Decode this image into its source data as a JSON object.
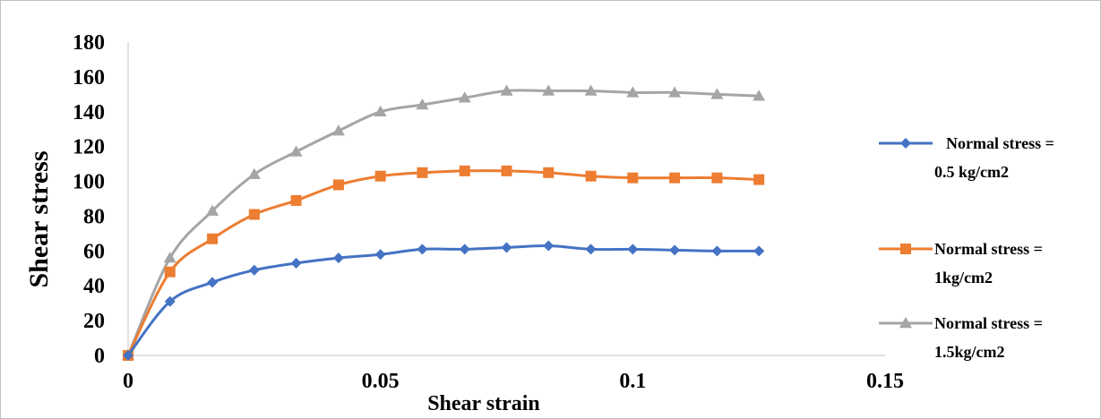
{
  "chart_data": {
    "type": "line",
    "title": "",
    "xlabel": "Shear strain",
    "ylabel": "Shear stress",
    "xlim": [
      0,
      0.15
    ],
    "ylim": [
      0,
      180
    ],
    "x_ticks": [
      "0",
      "0.05",
      "0.1",
      "0.15"
    ],
    "y_ticks": [
      "0",
      "20",
      "40",
      "60",
      "80",
      "100",
      "120",
      "140",
      "160",
      "180"
    ],
    "grid": false,
    "legend_position": "right",
    "x": [
      0,
      0.0083,
      0.0167,
      0.025,
      0.0333,
      0.0417,
      0.05,
      0.0583,
      0.0667,
      0.075,
      0.0833,
      0.0917,
      0.1,
      0.1083,
      0.1167,
      0.125
    ],
    "series": [
      {
        "name_line1": "Normal stress =",
        "name_line2": "0.5 kg/cm2",
        "color": "#4472C4",
        "marker": "diamond",
        "values": [
          0,
          31,
          42,
          49,
          53,
          56,
          58,
          61,
          61,
          62,
          63,
          61,
          61,
          60.5,
          60,
          60
        ]
      },
      {
        "name_line1": "Normal stress =",
        "name_line2": "1kg/cm2",
        "color": "#ED7D31",
        "marker": "square",
        "values": [
          0,
          48,
          67,
          81,
          89,
          98,
          103,
          105,
          106,
          106,
          105,
          103,
          102,
          102,
          102,
          101
        ]
      },
      {
        "name_line1": "Normal stress =",
        "name_line2": "1.5kg/cm2",
        "color": "#A5A5A5",
        "marker": "triangle",
        "values": [
          0,
          56,
          83,
          104,
          117,
          129,
          140,
          144,
          148,
          152,
          152,
          152,
          151,
          151,
          150,
          149
        ]
      }
    ]
  }
}
